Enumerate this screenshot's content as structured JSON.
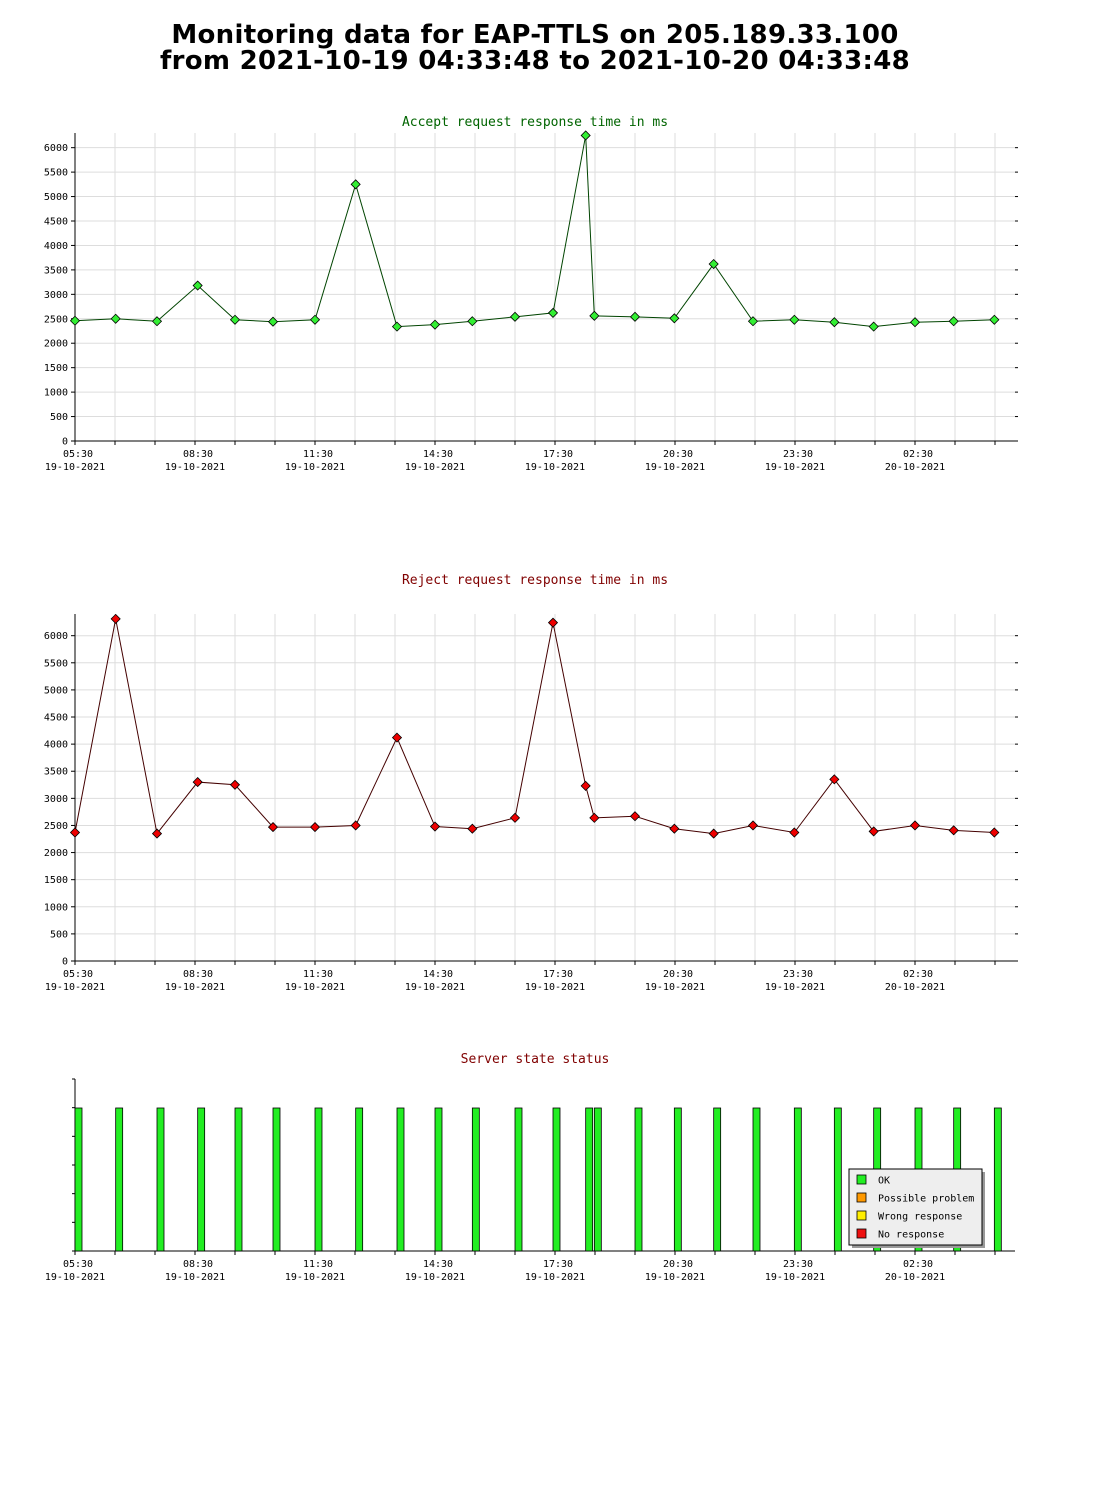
{
  "header": {
    "title_line1": "Monitoring data for EAP-TTLS on 205.189.33.100",
    "title_line2": "from 2021-10-19 04:33:48 to 2021-10-20 04:33:48"
  },
  "colors": {
    "accept_title": "#006400",
    "reject_title": "#800000",
    "status_title": "#800000",
    "accept_marker": "#33ee33",
    "reject_marker": "#ee0000",
    "ok": "#22ee22",
    "possible_problem": "#ff9900",
    "wrong_response": "#ffee00",
    "no_response": "#ee1111",
    "grid": "#dddddd"
  },
  "chart_data": [
    {
      "type": "line",
      "title": "Accept request response time in ms",
      "xlabel": "",
      "ylabel": "",
      "ylim": [
        0,
        6300
      ],
      "yticks": [
        0,
        500,
        1000,
        1500,
        2000,
        2500,
        3000,
        3500,
        4000,
        4500,
        5000,
        5500,
        6000
      ],
      "xlim": [
        "2021-10-19 05:30",
        "2021-10-20 05:00"
      ],
      "xticks": [
        {
          "t": "2021-10-19 05:30",
          "time": "05:30",
          "date": "19-10-2021"
        },
        {
          "t": "2021-10-19 08:30",
          "time": "08:30",
          "date": "19-10-2021"
        },
        {
          "t": "2021-10-19 11:30",
          "time": "11:30",
          "date": "19-10-2021"
        },
        {
          "t": "2021-10-19 14:30",
          "time": "14:30",
          "date": "19-10-2021"
        },
        {
          "t": "2021-10-19 17:30",
          "time": "17:30",
          "date": "19-10-2021"
        },
        {
          "t": "2021-10-19 20:30",
          "time": "20:30",
          "date": "19-10-2021"
        },
        {
          "t": "2021-10-19 23:30",
          "time": "23:30",
          "date": "19-10-2021"
        },
        {
          "t": "2021-10-20 02:30",
          "time": "02:30",
          "date": "20-10-2021"
        }
      ],
      "grid": true,
      "x": [
        "2021-10-19 05:30",
        "2021-10-19 06:31",
        "2021-10-19 07:33",
        "2021-10-19 08:34",
        "2021-10-19 09:30",
        "2021-10-19 10:27",
        "2021-10-19 11:30",
        "2021-10-19 12:31",
        "2021-10-19 13:33",
        "2021-10-19 14:30",
        "2021-10-19 15:26",
        "2021-10-19 16:30",
        "2021-10-19 17:27",
        "2021-10-19 18:16",
        "2021-10-19 18:29",
        "2021-10-19 19:30",
        "2021-10-19 20:29",
        "2021-10-19 21:28",
        "2021-10-19 22:27",
        "2021-10-19 23:29",
        "2021-10-20 00:29",
        "2021-10-20 01:28",
        "2021-10-20 02:30",
        "2021-10-20 03:28",
        "2021-10-20 04:29"
      ],
      "y": [
        2460,
        2500,
        2450,
        3180,
        2480,
        2440,
        2480,
        5250,
        2340,
        2380,
        2450,
        2540,
        2620,
        6250,
        2560,
        2540,
        2510,
        3620,
        2450,
        2480,
        2430,
        2340,
        2430,
        2450,
        2480
      ]
    },
    {
      "type": "line",
      "title": "Reject request response time in ms",
      "xlabel": "",
      "ylabel": "",
      "ylim": [
        0,
        6400
      ],
      "yticks": [
        0,
        500,
        1000,
        1500,
        2000,
        2500,
        3000,
        3500,
        4000,
        4500,
        5000,
        5500,
        6000
      ],
      "xlim": [
        "2021-10-19 05:30",
        "2021-10-20 05:00"
      ],
      "xticks": [
        {
          "t": "2021-10-19 05:30",
          "time": "05:30",
          "date": "19-10-2021"
        },
        {
          "t": "2021-10-19 08:30",
          "time": "08:30",
          "date": "19-10-2021"
        },
        {
          "t": "2021-10-19 11:30",
          "time": "11:30",
          "date": "19-10-2021"
        },
        {
          "t": "2021-10-19 14:30",
          "time": "14:30",
          "date": "19-10-2021"
        },
        {
          "t": "2021-10-19 17:30",
          "time": "17:30",
          "date": "19-10-2021"
        },
        {
          "t": "2021-10-19 20:30",
          "time": "20:30",
          "date": "19-10-2021"
        },
        {
          "t": "2021-10-19 23:30",
          "time": "23:30",
          "date": "19-10-2021"
        },
        {
          "t": "2021-10-20 02:30",
          "time": "02:30",
          "date": "20-10-2021"
        }
      ],
      "grid": true,
      "x": [
        "2021-10-19 05:30",
        "2021-10-19 06:31",
        "2021-10-19 07:33",
        "2021-10-19 08:34",
        "2021-10-19 09:30",
        "2021-10-19 10:27",
        "2021-10-19 11:30",
        "2021-10-19 12:31",
        "2021-10-19 13:33",
        "2021-10-19 14:30",
        "2021-10-19 15:26",
        "2021-10-19 16:30",
        "2021-10-19 17:27",
        "2021-10-19 18:16",
        "2021-10-19 18:29",
        "2021-10-19 19:30",
        "2021-10-19 20:29",
        "2021-10-19 21:28",
        "2021-10-19 22:27",
        "2021-10-19 23:29",
        "2021-10-20 00:29",
        "2021-10-20 01:28",
        "2021-10-20 02:30",
        "2021-10-20 03:28",
        "2021-10-20 04:29"
      ],
      "y": [
        2370,
        6310,
        2350,
        3300,
        3250,
        2470,
        2470,
        2500,
        4120,
        2480,
        2440,
        2640,
        6240,
        3230,
        2640,
        2670,
        2440,
        2350,
        2500,
        2370,
        3350,
        2390,
        2500,
        2410,
        2370
      ]
    },
    {
      "type": "bar",
      "title": "Server state status",
      "xlabel": "",
      "ylabel": "",
      "xlim": [
        "2021-10-19 05:30",
        "2021-10-20 05:00"
      ],
      "xticks": [
        {
          "t": "2021-10-19 05:30",
          "time": "05:30",
          "date": "19-10-2021"
        },
        {
          "t": "2021-10-19 08:30",
          "time": "08:30",
          "date": "19-10-2021"
        },
        {
          "t": "2021-10-19 11:30",
          "time": "11:30",
          "date": "19-10-2021"
        },
        {
          "t": "2021-10-19 14:30",
          "time": "14:30",
          "date": "19-10-2021"
        },
        {
          "t": "2021-10-19 17:30",
          "time": "17:30",
          "date": "19-10-2021"
        },
        {
          "t": "2021-10-19 20:30",
          "time": "20:30",
          "date": "19-10-2021"
        },
        {
          "t": "2021-10-19 23:30",
          "time": "23:30",
          "date": "19-10-2021"
        },
        {
          "t": "2021-10-20 02:30",
          "time": "02:30",
          "date": "20-10-2021"
        }
      ],
      "grid": false,
      "legend_position": "bottom-right",
      "legend": [
        "OK",
        "Possible problem",
        "Wrong response",
        "No response"
      ],
      "x": [
        "2021-10-19 05:30",
        "2021-10-19 06:31",
        "2021-10-19 07:33",
        "2021-10-19 08:34",
        "2021-10-19 09:30",
        "2021-10-19 10:27",
        "2021-10-19 11:30",
        "2021-10-19 12:31",
        "2021-10-19 13:33",
        "2021-10-19 14:30",
        "2021-10-19 15:26",
        "2021-10-19 16:30",
        "2021-10-19 17:27",
        "2021-10-19 18:16",
        "2021-10-19 18:29",
        "2021-10-19 19:30",
        "2021-10-19 20:29",
        "2021-10-19 21:28",
        "2021-10-19 22:27",
        "2021-10-19 23:29",
        "2021-10-20 00:29",
        "2021-10-20 01:28",
        "2021-10-20 02:30",
        "2021-10-20 03:28",
        "2021-10-20 04:29"
      ],
      "states": [
        "OK",
        "OK",
        "OK",
        "OK",
        "OK",
        "OK",
        "OK",
        "OK",
        "OK",
        "OK",
        "OK",
        "OK",
        "OK",
        "OK",
        "OK",
        "OK",
        "OK",
        "OK",
        "OK",
        "OK",
        "OK",
        "OK",
        "OK",
        "OK",
        "OK"
      ]
    }
  ]
}
